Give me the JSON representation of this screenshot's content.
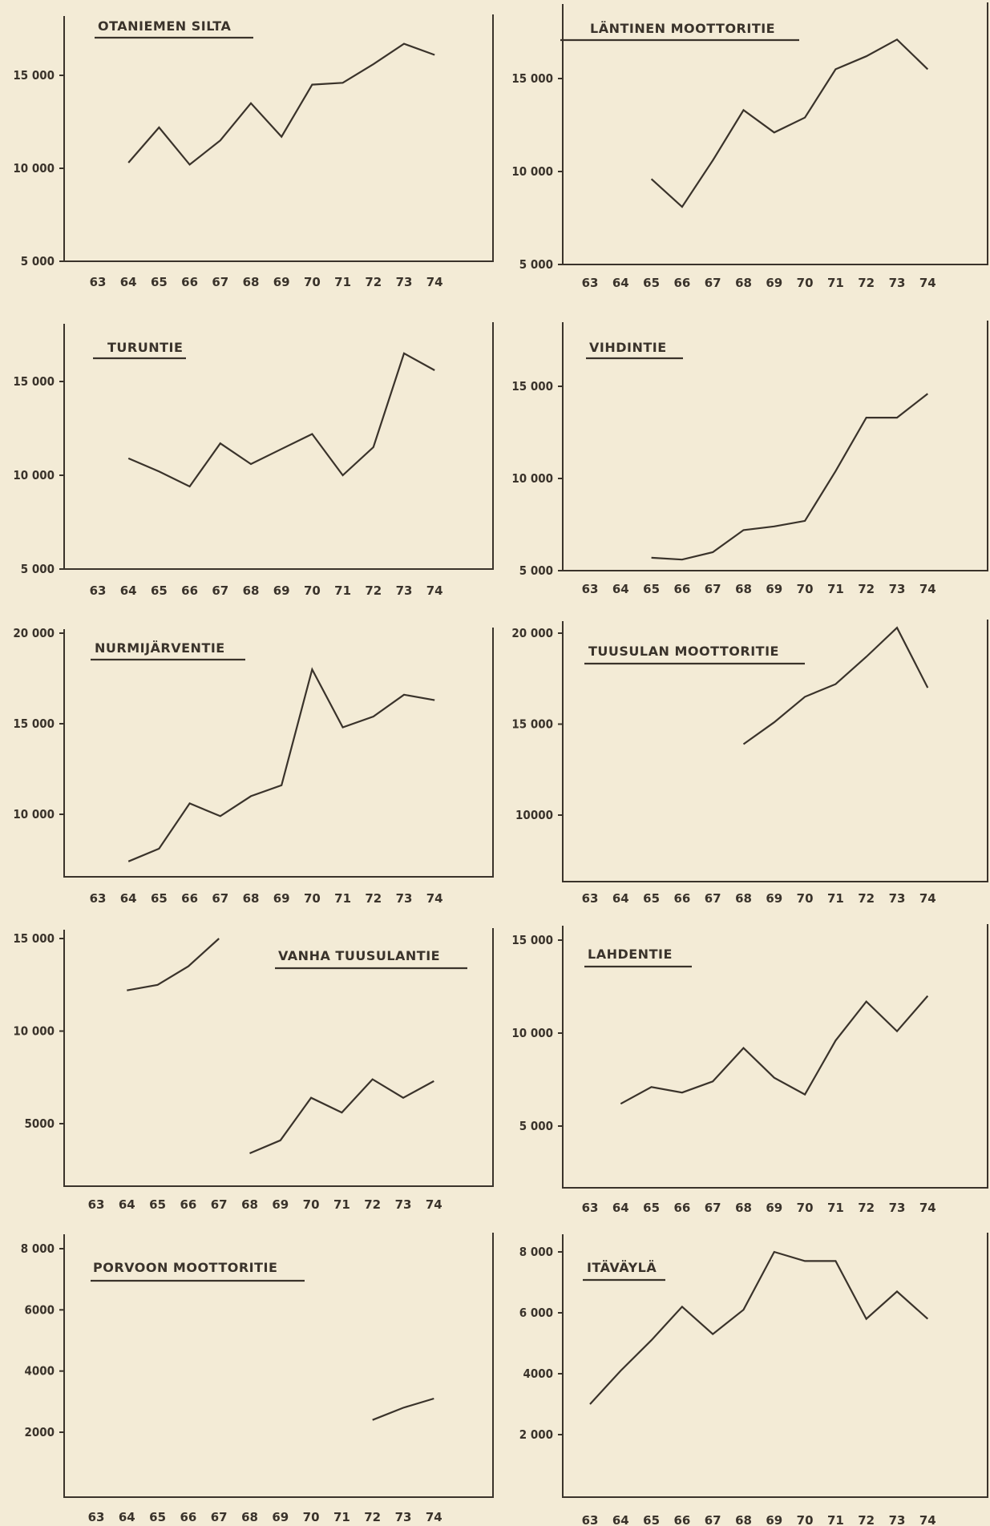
{
  "chart_data": [
    {
      "type": "line",
      "title": "OTANIEMEN SILTA",
      "x": [
        "63",
        "64",
        "65",
        "66",
        "67",
        "68",
        "69",
        "70",
        "71",
        "72",
        "73",
        "74"
      ],
      "y_ticks": [
        "5 000",
        "10 000",
        "15 000"
      ],
      "y_tick_values": [
        5000,
        10000,
        15000
      ],
      "series": [
        {
          "segments": [
            [
              {
                "x": "64",
                "y": 10300
              },
              {
                "x": "65",
                "y": 12200
              },
              {
                "x": "66",
                "y": 10200
              },
              {
                "x": "67",
                "y": 11500
              },
              {
                "x": "68",
                "y": 13500
              },
              {
                "x": "69",
                "y": 11700
              },
              {
                "x": "70",
                "y": 14500
              },
              {
                "x": "71",
                "y": 14600
              },
              {
                "x": "72",
                "y": 15600
              },
              {
                "x": "73",
                "y": 16700
              },
              {
                "x": "74",
                "y": 16100
              }
            ]
          ]
        }
      ]
    },
    {
      "type": "line",
      "title": "LÄNTINEN MOOTTORITIE",
      "x": [
        "63",
        "64",
        "65",
        "66",
        "67",
        "68",
        "69",
        "70",
        "71",
        "72",
        "73",
        "74"
      ],
      "y_ticks": [
        "5 000",
        "10 000",
        "15 000"
      ],
      "y_tick_values": [
        5000,
        10000,
        15000
      ],
      "series": [
        {
          "segments": [
            [
              {
                "x": "65",
                "y": 9600
              },
              {
                "x": "66",
                "y": 8100
              },
              {
                "x": "67",
                "y": 10600
              },
              {
                "x": "68",
                "y": 13300
              },
              {
                "x": "69",
                "y": 12100
              },
              {
                "x": "70",
                "y": 12900
              },
              {
                "x": "71",
                "y": 15500
              },
              {
                "x": "72",
                "y": 16200
              },
              {
                "x": "73",
                "y": 17100
              },
              {
                "x": "74",
                "y": 15500
              }
            ]
          ]
        }
      ]
    },
    {
      "type": "line",
      "title": "TURUNTIE",
      "x": [
        "63",
        "64",
        "65",
        "66",
        "67",
        "68",
        "69",
        "70",
        "71",
        "72",
        "73",
        "74"
      ],
      "y_ticks": [
        "5 000",
        "10 000",
        "15 000"
      ],
      "y_tick_values": [
        5000,
        10000,
        15000
      ],
      "series": [
        {
          "segments": [
            [
              {
                "x": "64",
                "y": 10900
              },
              {
                "x": "65",
                "y": 10200
              },
              {
                "x": "66",
                "y": 9400
              },
              {
                "x": "67",
                "y": 11700
              },
              {
                "x": "68",
                "y": 10600
              },
              {
                "x": "69",
                "y": 11400
              },
              {
                "x": "70",
                "y": 12200
              },
              {
                "x": "71",
                "y": 10000
              },
              {
                "x": "72",
                "y": 11500
              },
              {
                "x": "73",
                "y": 16500
              },
              {
                "x": "74",
                "y": 15600
              }
            ]
          ]
        }
      ]
    },
    {
      "type": "line",
      "title": "VIHDINTIE",
      "x": [
        "63",
        "64",
        "65",
        "66",
        "67",
        "68",
        "69",
        "70",
        "71",
        "72",
        "73",
        "74"
      ],
      "y_ticks": [
        "5 000",
        "10 000",
        "15 000"
      ],
      "y_tick_values": [
        5000,
        10000,
        15000
      ],
      "series": [
        {
          "segments": [
            [
              {
                "x": "65",
                "y": 5700
              },
              {
                "x": "66",
                "y": 5600
              },
              {
                "x": "67",
                "y": 6000
              },
              {
                "x": "68",
                "y": 7200
              },
              {
                "x": "69",
                "y": 7400
              },
              {
                "x": "70",
                "y": 7700
              },
              {
                "x": "71",
                "y": 10400
              },
              {
                "x": "72",
                "y": 13300
              },
              {
                "x": "73",
                "y": 13300
              },
              {
                "x": "74",
                "y": 14600
              }
            ]
          ]
        }
      ]
    },
    {
      "type": "line",
      "title": "NURMIJÄRVENTIE",
      "x": [
        "63",
        "64",
        "65",
        "66",
        "67",
        "68",
        "69",
        "70",
        "71",
        "72",
        "73",
        "74"
      ],
      "y_ticks": [
        "10 000",
        "15 000",
        "20 000"
      ],
      "y_tick_values": [
        10000,
        15000,
        20000
      ],
      "series": [
        {
          "segments": [
            [
              {
                "x": "64",
                "y": 7400
              },
              {
                "x": "65",
                "y": 8100
              },
              {
                "x": "66",
                "y": 10600
              },
              {
                "x": "67",
                "y": 9900
              },
              {
                "x": "68",
                "y": 11000
              },
              {
                "x": "69",
                "y": 11600
              },
              {
                "x": "70",
                "y": 18000
              },
              {
                "x": "71",
                "y": 14800
              },
              {
                "x": "72",
                "y": 15400
              },
              {
                "x": "73",
                "y": 16600
              },
              {
                "x": "74",
                "y": 16300
              }
            ]
          ]
        }
      ]
    },
    {
      "type": "line",
      "title": "TUUSULAN MOOTTORITIE",
      "x": [
        "63",
        "64",
        "65",
        "66",
        "67",
        "68",
        "69",
        "70",
        "71",
        "72",
        "73",
        "74"
      ],
      "y_ticks": [
        "10000",
        "15 000",
        "20 000"
      ],
      "y_tick_values": [
        10000,
        15000,
        20000
      ],
      "series": [
        {
          "segments": [
            [
              {
                "x": "68",
                "y": 13900
              },
              {
                "x": "69",
                "y": 15100
              },
              {
                "x": "70",
                "y": 16500
              },
              {
                "x": "71",
                "y": 17200
              },
              {
                "x": "72",
                "y": 18700
              },
              {
                "x": "73",
                "y": 20300
              },
              {
                "x": "74",
                "y": 17000
              }
            ]
          ]
        }
      ]
    },
    {
      "type": "line",
      "title": "VANHA TUUSULANTIE",
      "x": [
        "63",
        "64",
        "65",
        "66",
        "67",
        "68",
        "69",
        "70",
        "71",
        "72",
        "73",
        "74"
      ],
      "y_ticks": [
        "5000",
        "10 000",
        "15 000"
      ],
      "y_tick_values": [
        5000,
        10000,
        15000
      ],
      "series": [
        {
          "segments": [
            [
              {
                "x": "64",
                "y": 12200
              },
              {
                "x": "65",
                "y": 12500
              },
              {
                "x": "66",
                "y": 13500
              },
              {
                "x": "67",
                "y": 15000
              }
            ],
            [
              {
                "x": "68",
                "y": 3400
              },
              {
                "x": "69",
                "y": 4100
              },
              {
                "x": "70",
                "y": 6400
              },
              {
                "x": "71",
                "y": 5600
              },
              {
                "x": "72",
                "y": 7400
              },
              {
                "x": "73",
                "y": 6400
              },
              {
                "x": "74",
                "y": 7300
              }
            ]
          ]
        }
      ]
    },
    {
      "type": "line",
      "title": "LAHDENTIE",
      "x": [
        "63",
        "64",
        "65",
        "66",
        "67",
        "68",
        "69",
        "70",
        "71",
        "72",
        "73",
        "74"
      ],
      "y_ticks": [
        "5 000",
        "10 000",
        "15 000"
      ],
      "y_tick_values": [
        5000,
        10000,
        15000
      ],
      "series": [
        {
          "segments": [
            [
              {
                "x": "64",
                "y": 6200
              },
              {
                "x": "65",
                "y": 7100
              },
              {
                "x": "66",
                "y": 6800
              },
              {
                "x": "67",
                "y": 7400
              },
              {
                "x": "68",
                "y": 9200
              },
              {
                "x": "69",
                "y": 7600
              },
              {
                "x": "70",
                "y": 6700
              },
              {
                "x": "71",
                "y": 9600
              },
              {
                "x": "72",
                "y": 11700
              },
              {
                "x": "73",
                "y": 10100
              },
              {
                "x": "74",
                "y": 12000
              }
            ]
          ]
        }
      ]
    },
    {
      "type": "line",
      "title": "PORVOON MOOTTORITIE",
      "x": [
        "63",
        "64",
        "65",
        "66",
        "67",
        "68",
        "69",
        "70",
        "71",
        "72",
        "73",
        "74"
      ],
      "y_ticks": [
        "2000",
        "4000",
        "6000",
        "8 000"
      ],
      "y_tick_values": [
        2000,
        4000,
        6000,
        8000
      ],
      "series": [
        {
          "segments": [
            [
              {
                "x": "72",
                "y": 2400
              },
              {
                "x": "73",
                "y": 2800
              },
              {
                "x": "74",
                "y": 3100
              }
            ]
          ]
        }
      ]
    },
    {
      "type": "line",
      "title": "ITÄVÄYLÄ",
      "x": [
        "63",
        "64",
        "65",
        "66",
        "67",
        "68",
        "69",
        "70",
        "71",
        "72",
        "73",
        "74"
      ],
      "y_ticks": [
        "2 000",
        "4000",
        "6 000",
        "8 000"
      ],
      "y_tick_values": [
        2000,
        4000,
        6000,
        8000
      ],
      "series": [
        {
          "segments": [
            [
              {
                "x": "63",
                "y": 3000
              },
              {
                "x": "64",
                "y": 4100
              },
              {
                "x": "65",
                "y": 5100
              },
              {
                "x": "66",
                "y": 6200
              },
              {
                "x": "67",
                "y": 5300
              },
              {
                "x": "68",
                "y": 6100
              },
              {
                "x": "69",
                "y": 8000
              },
              {
                "x": "70",
                "y": 7700
              },
              {
                "x": "71",
                "y": 7700
              },
              {
                "x": "72",
                "y": 5800
              },
              {
                "x": "73",
                "y": 6700
              },
              {
                "x": "74",
                "y": 5800
              }
            ]
          ]
        }
      ]
    }
  ]
}
